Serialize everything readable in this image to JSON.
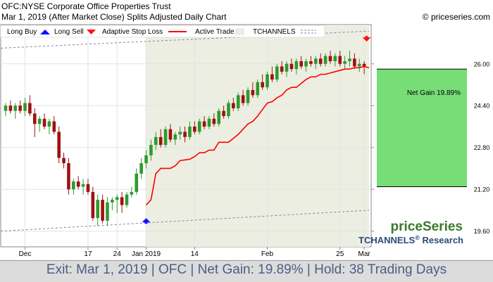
{
  "header": {
    "title": "OFC:NYSE Corporate Office Properties Trust",
    "subtitle": "Mar 1, 2019 (After Market Close)  Splits Adjusted Daily Chart",
    "copyright": "© priceseries.com"
  },
  "legend": {
    "long_buy": "Long Buy",
    "long_sell": "Long Sell",
    "stop_loss": "Adaptive Stop Loss",
    "active_trade": "Active Trade",
    "tchannels": "TCHANNELS"
  },
  "colors": {
    "up": "#2e9a2e",
    "down": "#a01010",
    "stop": "#ff0000",
    "buy_marker": "#1010ff",
    "sell_marker": "#ff1010",
    "active_zone": "#eceee2",
    "gain_box": "#77dd77",
    "channel": "#7a86a8",
    "brand": "#3a7a2a",
    "brand_research": "#2a4a7a"
  },
  "brand": {
    "name": "priceSeries",
    "research_prefix": "TCHANNELS",
    "reg": "®",
    "research_suffix": " Research"
  },
  "annotation": {
    "net_gain_label": "Net Gain 19.89%"
  },
  "footer": {
    "text": "Exit: Mar 1, 2019 | OFC | Net Gain: 19.89% | Hold: 38 Trading Days"
  },
  "chart_data": {
    "type": "candlestick",
    "ylim": [
      19.0,
      27.5
    ],
    "y_ticks": [
      "26.00",
      "24.40",
      "22.80",
      "21.20",
      "19.60"
    ],
    "y_tick_values": [
      26.0,
      24.4,
      22.8,
      21.2,
      19.6
    ],
    "x_tick_labels": [
      "Dec",
      "17",
      "24",
      "Jan 2019",
      "14",
      "Feb",
      "25",
      "Mar"
    ],
    "x_tick_indices": [
      4,
      17,
      23,
      29,
      39,
      54,
      69,
      74
    ],
    "entry_index": 29,
    "exit_index": 75,
    "entry_price": 21.6,
    "exit_price": 25.9,
    "gain_range": [
      21.3,
      25.8
    ],
    "channel_upper": [
      [
        0,
        26.6
      ],
      [
        75,
        27.25
      ]
    ],
    "channel_lower": [
      [
        0,
        19.6
      ],
      [
        75,
        20.4
      ]
    ],
    "candles": [
      {
        "o": 24.2,
        "h": 24.5,
        "l": 24.0,
        "c": 24.4
      },
      {
        "o": 24.4,
        "h": 24.6,
        "l": 24.1,
        "c": 24.2
      },
      {
        "o": 24.2,
        "h": 24.5,
        "l": 23.9,
        "c": 24.4
      },
      {
        "o": 24.4,
        "h": 24.6,
        "l": 24.1,
        "c": 24.2
      },
      {
        "o": 24.2,
        "h": 24.7,
        "l": 24.0,
        "c": 24.5
      },
      {
        "o": 24.5,
        "h": 24.8,
        "l": 24.0,
        "c": 24.1
      },
      {
        "o": 24.1,
        "h": 24.3,
        "l": 23.2,
        "c": 23.7
      },
      {
        "o": 23.7,
        "h": 24.0,
        "l": 23.4,
        "c": 23.9
      },
      {
        "o": 23.9,
        "h": 24.1,
        "l": 23.5,
        "c": 23.6
      },
      {
        "o": 23.6,
        "h": 23.9,
        "l": 23.3,
        "c": 23.8
      },
      {
        "o": 23.8,
        "h": 24.0,
        "l": 23.3,
        "c": 23.4
      },
      {
        "o": 23.4,
        "h": 23.6,
        "l": 22.2,
        "c": 22.4
      },
      {
        "o": 22.4,
        "h": 22.6,
        "l": 22.0,
        "c": 22.2
      },
      {
        "o": 22.2,
        "h": 22.4,
        "l": 21.0,
        "c": 21.2
      },
      {
        "o": 21.2,
        "h": 21.6,
        "l": 21.0,
        "c": 21.5
      },
      {
        "o": 21.5,
        "h": 21.7,
        "l": 21.2,
        "c": 21.3
      },
      {
        "o": 21.3,
        "h": 21.6,
        "l": 21.0,
        "c": 21.4
      },
      {
        "o": 21.4,
        "h": 21.6,
        "l": 21.0,
        "c": 21.1
      },
      {
        "o": 21.1,
        "h": 21.3,
        "l": 20.0,
        "c": 20.1
      },
      {
        "o": 20.1,
        "h": 21.0,
        "l": 19.8,
        "c": 20.8
      },
      {
        "o": 20.8,
        "h": 21.0,
        "l": 19.9,
        "c": 20.0
      },
      {
        "o": 20.0,
        "h": 20.9,
        "l": 19.8,
        "c": 20.7
      },
      {
        "o": 20.7,
        "h": 20.9,
        "l": 20.4,
        "c": 20.8
      },
      {
        "o": 20.8,
        "h": 21.0,
        "l": 20.3,
        "c": 20.9
      },
      {
        "o": 20.9,
        "h": 21.1,
        "l": 20.3,
        "c": 20.6
      },
      {
        "o": 20.6,
        "h": 21.1,
        "l": 20.5,
        "c": 21.0
      },
      {
        "o": 21.0,
        "h": 21.3,
        "l": 20.9,
        "c": 21.1
      },
      {
        "o": 21.1,
        "h": 22.0,
        "l": 21.0,
        "c": 21.8
      },
      {
        "o": 21.8,
        "h": 22.4,
        "l": 21.6,
        "c": 22.2
      },
      {
        "o": 22.2,
        "h": 22.7,
        "l": 22.0,
        "c": 22.5
      },
      {
        "o": 22.5,
        "h": 23.1,
        "l": 22.3,
        "c": 22.9
      },
      {
        "o": 22.9,
        "h": 23.4,
        "l": 22.7,
        "c": 23.2
      },
      {
        "o": 23.2,
        "h": 23.5,
        "l": 22.8,
        "c": 22.9
      },
      {
        "o": 22.9,
        "h": 23.6,
        "l": 22.8,
        "c": 23.5
      },
      {
        "o": 23.5,
        "h": 23.7,
        "l": 23.0,
        "c": 23.1
      },
      {
        "o": 23.1,
        "h": 23.4,
        "l": 22.9,
        "c": 23.3
      },
      {
        "o": 23.3,
        "h": 23.6,
        "l": 23.1,
        "c": 23.4
      },
      {
        "o": 23.4,
        "h": 23.6,
        "l": 23.0,
        "c": 23.2
      },
      {
        "o": 23.2,
        "h": 23.8,
        "l": 23.1,
        "c": 23.6
      },
      {
        "o": 23.6,
        "h": 23.8,
        "l": 23.3,
        "c": 23.4
      },
      {
        "o": 23.4,
        "h": 23.9,
        "l": 23.3,
        "c": 23.8
      },
      {
        "o": 23.8,
        "h": 24.0,
        "l": 23.5,
        "c": 23.6
      },
      {
        "o": 23.6,
        "h": 24.0,
        "l": 23.5,
        "c": 23.9
      },
      {
        "o": 23.9,
        "h": 24.1,
        "l": 23.6,
        "c": 23.7
      },
      {
        "o": 23.7,
        "h": 24.3,
        "l": 23.6,
        "c": 24.2
      },
      {
        "o": 24.2,
        "h": 24.4,
        "l": 23.9,
        "c": 24.0
      },
      {
        "o": 24.0,
        "h": 24.6,
        "l": 23.9,
        "c": 24.5
      },
      {
        "o": 24.5,
        "h": 24.7,
        "l": 24.2,
        "c": 24.3
      },
      {
        "o": 24.3,
        "h": 24.9,
        "l": 24.2,
        "c": 24.8
      },
      {
        "o": 24.8,
        "h": 25.0,
        "l": 24.4,
        "c": 24.5
      },
      {
        "o": 24.5,
        "h": 25.1,
        "l": 24.4,
        "c": 25.0
      },
      {
        "o": 25.0,
        "h": 25.3,
        "l": 24.7,
        "c": 24.8
      },
      {
        "o": 24.8,
        "h": 25.4,
        "l": 24.7,
        "c": 25.3
      },
      {
        "o": 25.3,
        "h": 25.6,
        "l": 25.0,
        "c": 25.1
      },
      {
        "o": 25.1,
        "h": 25.7,
        "l": 25.0,
        "c": 25.6
      },
      {
        "o": 25.6,
        "h": 25.9,
        "l": 25.3,
        "c": 25.4
      },
      {
        "o": 25.4,
        "h": 26.0,
        "l": 25.3,
        "c": 25.9
      },
      {
        "o": 25.9,
        "h": 26.1,
        "l": 25.6,
        "c": 25.7
      },
      {
        "o": 25.7,
        "h": 26.1,
        "l": 25.5,
        "c": 26.0
      },
      {
        "o": 26.0,
        "h": 26.2,
        "l": 25.7,
        "c": 25.8
      },
      {
        "o": 25.8,
        "h": 26.2,
        "l": 25.6,
        "c": 26.1
      },
      {
        "o": 26.1,
        "h": 26.3,
        "l": 25.8,
        "c": 25.9
      },
      {
        "o": 25.9,
        "h": 26.2,
        "l": 25.7,
        "c": 26.1
      },
      {
        "o": 26.1,
        "h": 26.3,
        "l": 25.9,
        "c": 26.0
      },
      {
        "o": 26.0,
        "h": 26.3,
        "l": 25.8,
        "c": 26.2
      },
      {
        "o": 26.2,
        "h": 26.4,
        "l": 25.9,
        "c": 26.0
      },
      {
        "o": 26.0,
        "h": 26.4,
        "l": 25.9,
        "c": 26.3
      },
      {
        "o": 26.3,
        "h": 26.5,
        "l": 26.0,
        "c": 26.1
      },
      {
        "o": 26.1,
        "h": 26.4,
        "l": 25.9,
        "c": 26.3
      },
      {
        "o": 26.3,
        "h": 26.5,
        "l": 25.9,
        "c": 26.0
      },
      {
        "o": 26.0,
        "h": 26.3,
        "l": 25.8,
        "c": 26.1
      },
      {
        "o": 26.1,
        "h": 26.5,
        "l": 25.9,
        "c": 26.2
      },
      {
        "o": 26.2,
        "h": 26.4,
        "l": 25.8,
        "c": 25.9
      },
      {
        "o": 25.9,
        "h": 26.2,
        "l": 25.7,
        "c": 26.0
      },
      {
        "o": 26.0,
        "h": 26.1,
        "l": 25.6,
        "c": 25.9
      }
    ],
    "stop_loss": [
      [
        29,
        20.6
      ],
      [
        30,
        20.8
      ],
      [
        31,
        21.8
      ],
      [
        32,
        22.0
      ],
      [
        34,
        22.0
      ],
      [
        35,
        22.1
      ],
      [
        36,
        22.3
      ],
      [
        38,
        22.35
      ],
      [
        39,
        22.45
      ],
      [
        40,
        22.6
      ],
      [
        41,
        22.6
      ],
      [
        42,
        22.7
      ],
      [
        43,
        22.7
      ],
      [
        44,
        23.0
      ],
      [
        46,
        23.0
      ],
      [
        47,
        23.15
      ],
      [
        48,
        23.3
      ],
      [
        49,
        23.5
      ],
      [
        50,
        23.7
      ],
      [
        51,
        23.8
      ],
      [
        52,
        24.0
      ],
      [
        53,
        24.25
      ],
      [
        54,
        24.5
      ],
      [
        55,
        24.55
      ],
      [
        56,
        24.7
      ],
      [
        57,
        24.8
      ],
      [
        58,
        25.0
      ],
      [
        59,
        25.1
      ],
      [
        60,
        25.1
      ],
      [
        61,
        25.25
      ],
      [
        62,
        25.4
      ],
      [
        63,
        25.5
      ],
      [
        64,
        25.5
      ],
      [
        65,
        25.6
      ],
      [
        66,
        25.6
      ],
      [
        67,
        25.65
      ],
      [
        68,
        25.7
      ],
      [
        69,
        25.75
      ],
      [
        70,
        25.8
      ],
      [
        71,
        25.8
      ],
      [
        72,
        25.85
      ],
      [
        73,
        25.85
      ],
      [
        74,
        25.9
      ],
      [
        75,
        25.85
      ]
    ]
  }
}
